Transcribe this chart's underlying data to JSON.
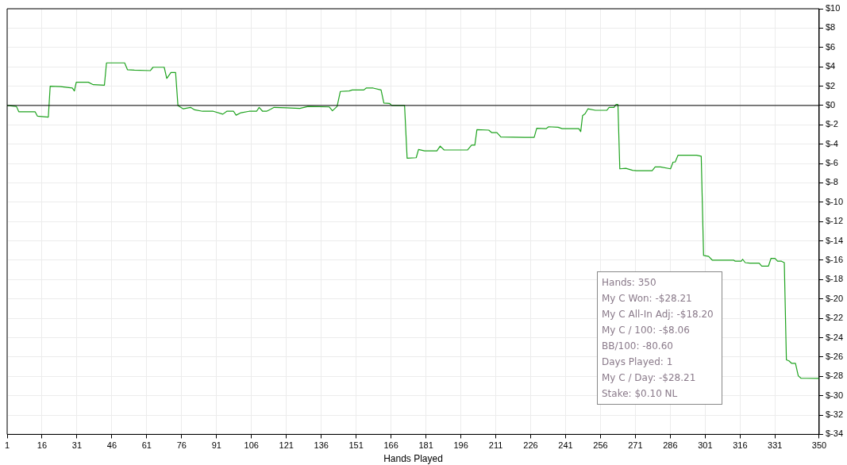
{
  "chart_data": {
    "type": "line",
    "xlabel": "Hands Played",
    "x": [
      1,
      5,
      6,
      13,
      14,
      18.7,
      19.5,
      23.9,
      29,
      29.9,
      30.7,
      35.9,
      38,
      42.8,
      43.7,
      51.5,
      52.7,
      55.7,
      62.5,
      63.7,
      68.5,
      69.6,
      71.4,
      73.4,
      74.4,
      76.7,
      79.8,
      81.6,
      85,
      89.6,
      93.7,
      95.4,
      98.3,
      99.4,
      101.5,
      105,
      108.2,
      109.3,
      110.8,
      112.5,
      114.2,
      115.7,
      121,
      126.8,
      130.3,
      139.4,
      140.8,
      142.8,
      144.2,
      148,
      149.3,
      154.3,
      155.3,
      158.3,
      161.7,
      162.9,
      165.4,
      166.3,
      171.8,
      172.9,
      176.8,
      177.8,
      180.4,
      185.7,
      187.1,
      188.8,
      198.9,
      200.6,
      202,
      202.9,
      208,
      209.2,
      211.5,
      213.2,
      223.5,
      227.5,
      228.6,
      232.6,
      233.7,
      237.8,
      239.5,
      246.7,
      247.5,
      248.3,
      249.4,
      250.6,
      253.8,
      258.7,
      259.7,
      261.8,
      262.7,
      263.5,
      264.3,
      266.9,
      269.8,
      271.5,
      278.2,
      279.5,
      281.8,
      286.1,
      287.2,
      288.1,
      289.3,
      297.3,
      299.3,
      300.3,
      302.5,
      304.1,
      313.3,
      313.9,
      316.5,
      317.1,
      318.2,
      320.2,
      324.2,
      325.3,
      328.2,
      329.3,
      331,
      332.1,
      333.8,
      335,
      335.9,
      337,
      338.1,
      339.8,
      341,
      342.2,
      350
    ],
    "series": [
      {
        "color": "#1fa31f",
        "values": [
          0,
          -0.1,
          -0.65,
          -0.65,
          -1.1,
          -1.2,
          2.0,
          1.95,
          1.8,
          1.5,
          2.4,
          2.4,
          2.15,
          2.1,
          4.4,
          4.4,
          3.7,
          3.65,
          3.6,
          3.95,
          3.95,
          2.8,
          3.4,
          3.4,
          0,
          -0.35,
          -0.2,
          -0.45,
          -0.6,
          -0.6,
          -0.9,
          -0.6,
          -0.6,
          -1.0,
          -0.75,
          -0.6,
          -0.6,
          -0.2,
          -0.6,
          -0.6,
          -0.4,
          -0.2,
          -0.25,
          -0.3,
          -0.1,
          -0.15,
          -0.55,
          -0.1,
          1.45,
          1.5,
          1.6,
          1.6,
          1.8,
          1.8,
          1.6,
          0.25,
          0.2,
          0,
          0,
          -5.45,
          -5.4,
          -4.55,
          -4.7,
          -4.7,
          -4.2,
          -4.6,
          -4.6,
          -4.1,
          -4.1,
          -2.5,
          -2.55,
          -2.8,
          -2.8,
          -3.25,
          -3.3,
          -3.3,
          -2.35,
          -2.4,
          -2.2,
          -2.25,
          -2.4,
          -2.4,
          -2.7,
          -1.05,
          -0.85,
          -0.35,
          -0.5,
          -0.5,
          -0.2,
          -0.2,
          0.1,
          0.1,
          -6.55,
          -6.5,
          -6.7,
          -6.75,
          -6.75,
          -6.35,
          -6.35,
          -6.55,
          -5.85,
          -5.85,
          -5.15,
          -5.15,
          -5.25,
          -15.5,
          -15.6,
          -16.0,
          -16.0,
          -16.1,
          -16.1,
          -15.9,
          -16.25,
          -16.3,
          -16.3,
          -16.6,
          -16.6,
          -15.8,
          -15.8,
          -16.1,
          -16.1,
          -16.25,
          -26.3,
          -26.4,
          -26.65,
          -26.65,
          -27.95,
          -28.2,
          -28.21
        ]
      }
    ],
    "xlim": [
      1,
      350
    ],
    "xticks": [
      1,
      16,
      31,
      46,
      61,
      76,
      91,
      106,
      121,
      136,
      151,
      166,
      181,
      196,
      211,
      226,
      241,
      256,
      271,
      286,
      301,
      316,
      331,
      350
    ],
    "ylim": [
      -34,
      10
    ],
    "yticks": [
      {
        "value": 10,
        "label": "$10"
      },
      {
        "value": 8,
        "label": "$8"
      },
      {
        "value": 6,
        "label": "$6"
      },
      {
        "value": 4,
        "label": "$4"
      },
      {
        "value": 2,
        "label": "$2"
      },
      {
        "value": 0,
        "label": "$0"
      },
      {
        "value": -2,
        "label": "$-2"
      },
      {
        "value": -4,
        "label": "$-4"
      },
      {
        "value": -6,
        "label": "$-6"
      },
      {
        "value": -8,
        "label": "$-8"
      },
      {
        "value": -10,
        "label": "$-10"
      },
      {
        "value": -12,
        "label": "$-12"
      },
      {
        "value": -14,
        "label": "$-14"
      },
      {
        "value": -16,
        "label": "$-16"
      },
      {
        "value": -18,
        "label": "$-18"
      },
      {
        "value": -20,
        "label": "$-20"
      },
      {
        "value": -22,
        "label": "$-22"
      },
      {
        "value": -24,
        "label": "$-24"
      },
      {
        "value": -26,
        "label": "$-26"
      },
      {
        "value": -28,
        "label": "$-28"
      },
      {
        "value": -30,
        "label": "$-30"
      },
      {
        "value": -32,
        "label": "$-32"
      },
      {
        "value": -34,
        "label": "$-34"
      }
    ],
    "grid": true,
    "legend": false,
    "marker": "none",
    "ref_lines": [
      {
        "axis": "y",
        "value": 0,
        "color": "#000000"
      }
    ],
    "annotations": [
      "Hands: 350",
      "My C Won: -$28.21",
      "My C All-In Adj: -$18.20",
      "My C / 100: -$8.06",
      "BB/100: -80.60",
      "Days Played: 1",
      "My C / Day: -$28.21",
      "Stake: $0.10 NL"
    ]
  }
}
